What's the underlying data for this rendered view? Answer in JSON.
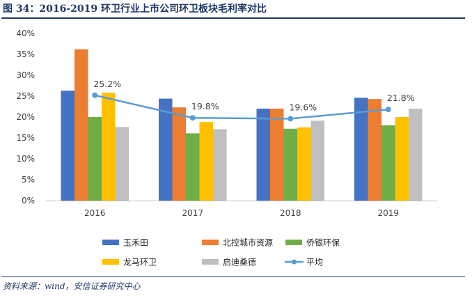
{
  "figure": {
    "title": "图 34：2016-2019 环卫行业上市公司环卫板块毛利率对比",
    "source": "资料来源：wind，安信证券研究中心"
  },
  "chart_data": {
    "type": "bar",
    "title": "图 34：2016-2019 环卫行业上市公司环卫板块毛利率对比",
    "xlabel": "",
    "ylabel": "",
    "categories": [
      "2016",
      "2017",
      "2018",
      "2019"
    ],
    "ylim": [
      0,
      40
    ],
    "yticks": [
      0,
      5,
      10,
      15,
      20,
      25,
      30,
      35,
      40
    ],
    "ytick_labels": [
      "0%",
      "5%",
      "10%",
      "15%",
      "20%",
      "25%",
      "30%",
      "35%",
      "40%"
    ],
    "grid": false,
    "legend_position": "bottom",
    "series": [
      {
        "name": "玉禾田",
        "type": "bar",
        "color": "#4472c4",
        "values": [
          26.3,
          24.4,
          22.0,
          24.6
        ]
      },
      {
        "name": "北控城市资源",
        "type": "bar",
        "color": "#ed7d31",
        "values": [
          36.2,
          22.3,
          22.0,
          24.3
        ]
      },
      {
        "name": "侨银环保",
        "type": "bar",
        "color": "#70ad47",
        "values": [
          20.0,
          16.1,
          17.2,
          18.0
        ]
      },
      {
        "name": "龙马环卫",
        "type": "bar",
        "color": "#ffc000",
        "values": [
          25.8,
          18.8,
          17.5,
          20.0
        ]
      },
      {
        "name": "启迪桑德",
        "type": "bar",
        "color": "#bfbfbf",
        "values": [
          17.6,
          17.1,
          19.1,
          22.0
        ]
      },
      {
        "name": "平均",
        "type": "line",
        "color": "#5b9bd5",
        "values": [
          25.2,
          19.8,
          19.6,
          21.8
        ]
      }
    ],
    "data_labels": [
      "25.2%",
      "19.8%",
      "19.6%",
      "21.8%"
    ]
  }
}
